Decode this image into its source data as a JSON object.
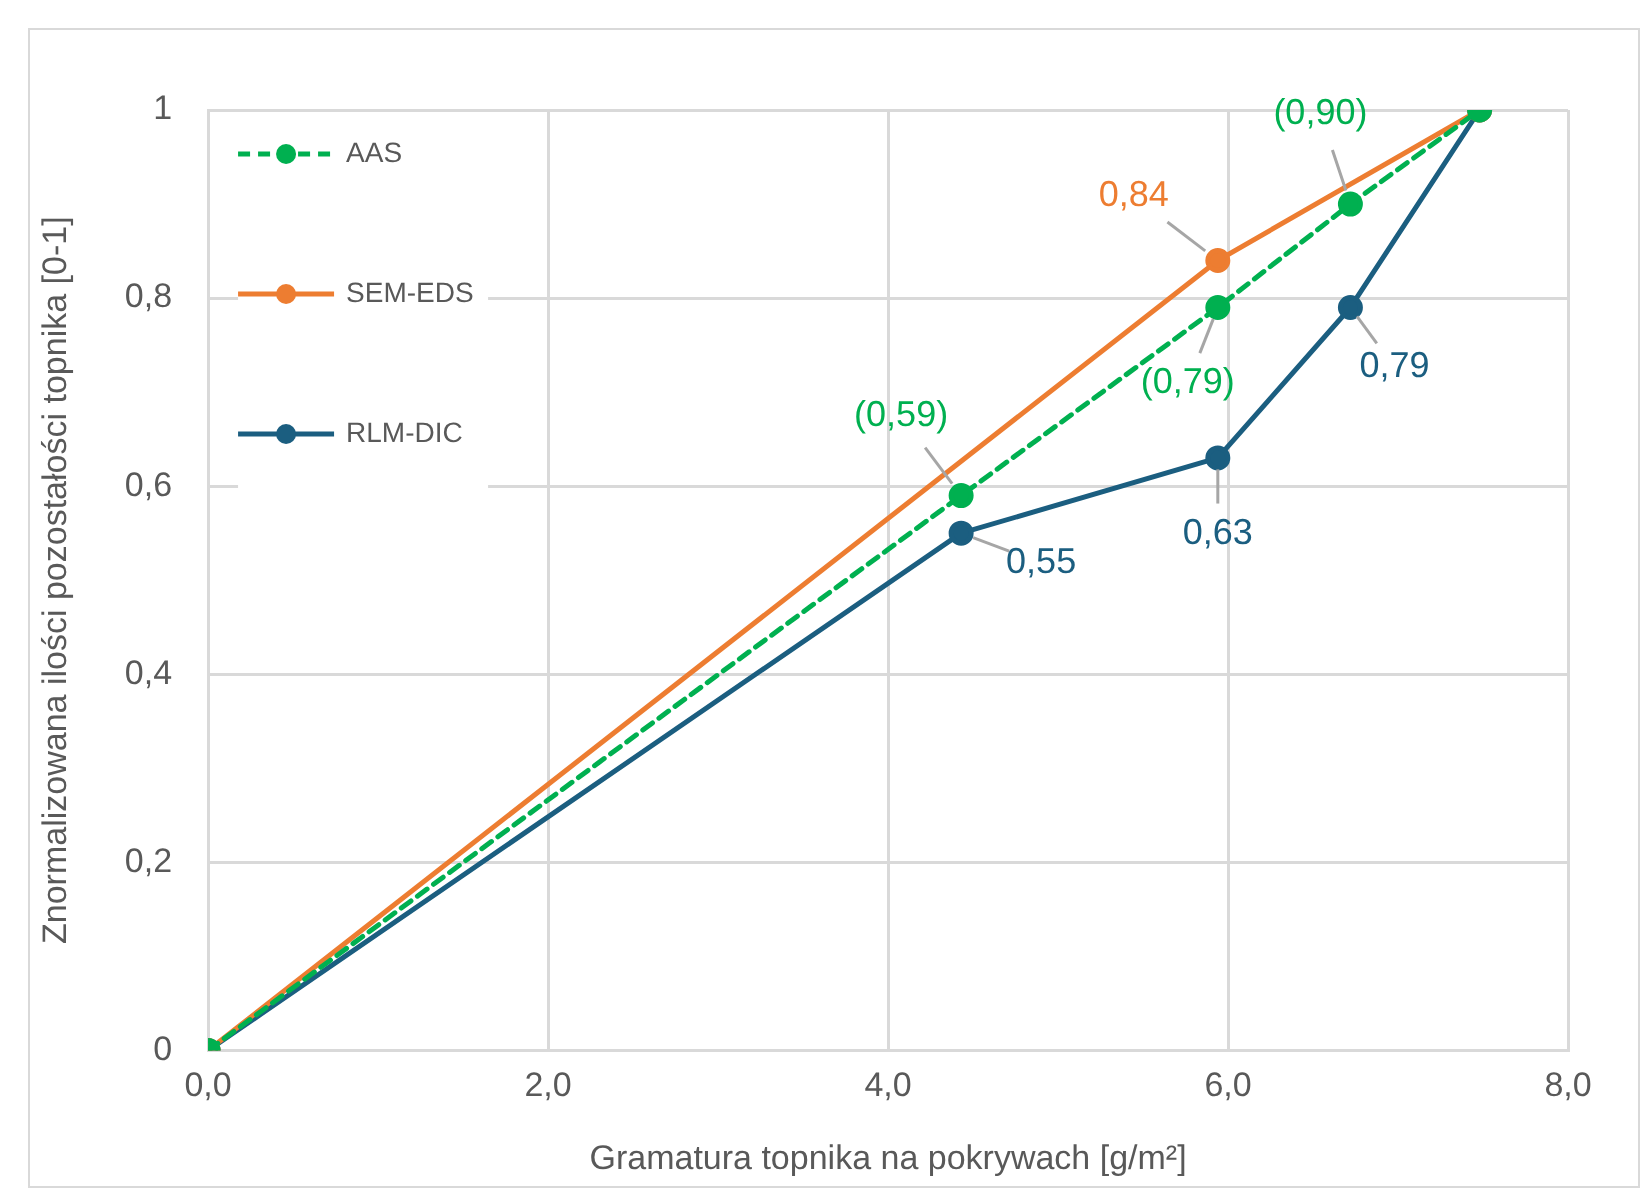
{
  "chart_data": {
    "type": "line",
    "xlabel": "Gramatura topnika na pokrywach [g/m²]",
    "ylabel": "Znormalizowana ilości pozostałości topnika [0-1]",
    "xlim": [
      0,
      8
    ],
    "xticks": [
      {
        "value": 0,
        "label": "0,0"
      },
      {
        "value": 2,
        "label": "2,0"
      },
      {
        "value": 4,
        "label": "4,0"
      },
      {
        "value": 6,
        "label": "6,0"
      },
      {
        "value": 8,
        "label": "8,0"
      }
    ],
    "ylim": [
      0,
      1
    ],
    "yticks": [
      0,
      {
        "value": 0.2,
        "label": "0,2"
      },
      {
        "value": 0.4,
        "label": "0,4"
      },
      {
        "value": 0.6,
        "label": "0,6"
      },
      {
        "value": 0.8,
        "label": "0,8"
      },
      1
    ],
    "grid": true,
    "legend": "top left",
    "marker": "circle",
    "series": [
      {
        "name": "AAS",
        "color": "#00b050",
        "line_style": "dashed",
        "x": [
          0,
          4.43,
          5.94,
          6.72,
          7.48
        ],
        "values": [
          0,
          0.59,
          0.79,
          0.9,
          1
        ],
        "value_labels": [
          null,
          "(0,59)",
          "(0,79)",
          "(0,90)",
          null
        ]
      },
      {
        "name": "SEM-EDS",
        "color": "#ed7d31",
        "line_style": "solid",
        "x": [
          0,
          5.94,
          7.48
        ],
        "values": [
          0,
          0.84,
          1
        ],
        "value_labels": [
          null,
          "0,84",
          null
        ]
      },
      {
        "name": "RLM-DIC",
        "color": "#1b5e80",
        "line_style": "solid",
        "x": [
          0,
          4.43,
          5.94,
          6.72,
          7.48
        ],
        "values": [
          0,
          0.55,
          0.63,
          0.79,
          1
        ],
        "value_labels": [
          null,
          "0,55",
          "0,63",
          "0,79",
          null
        ]
      }
    ]
  }
}
